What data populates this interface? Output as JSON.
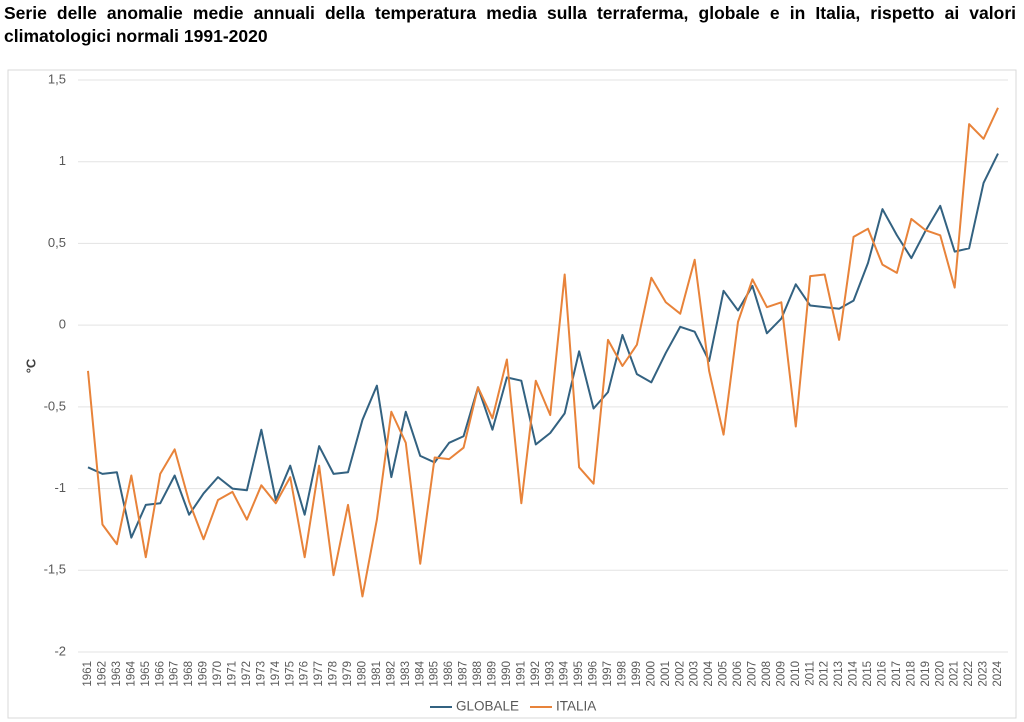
{
  "chart_data": {
    "type": "line",
    "title": "Serie delle anomalie medie annuali della temperatura media sulla terraferma, globale e in Italia, rispetto ai valori climatologici normali 1991-2020",
    "y_label": "°C",
    "categories": [
      "1961",
      "1962",
      "1963",
      "1964",
      "1965",
      "1966",
      "1967",
      "1968",
      "1969",
      "1970",
      "1971",
      "1972",
      "1973",
      "1974",
      "1975",
      "1976",
      "1977",
      "1978",
      "1979",
      "1980",
      "1981",
      "1982",
      "1983",
      "1984",
      "1985",
      "1986",
      "1987",
      "1988",
      "1989",
      "1990",
      "1991",
      "1992",
      "1993",
      "1994",
      "1995",
      "1996",
      "1997",
      "1998",
      "1999",
      "2000",
      "2001",
      "2002",
      "2003",
      "2004",
      "2005",
      "2006",
      "2007",
      "2008",
      "2009",
      "2010",
      "2011",
      "2012",
      "2013",
      "2014",
      "2015",
      "2016",
      "2017",
      "2018",
      "2019",
      "2020",
      "2021",
      "2022",
      "2023",
      "2024"
    ],
    "series": [
      {
        "name": "GLOBALE",
        "color": "#336281",
        "values": [
          -0.87,
          -0.91,
          -0.9,
          -1.3,
          -1.1,
          -1.09,
          -0.92,
          -1.16,
          -1.03,
          -0.93,
          -1.0,
          -1.01,
          -0.64,
          -1.07,
          -0.86,
          -1.16,
          -0.74,
          -0.91,
          -0.9,
          -0.58,
          -0.37,
          -0.93,
          -0.53,
          -0.8,
          -0.84,
          -0.72,
          -0.68,
          -0.38,
          -0.64,
          -0.32,
          -0.34,
          -0.73,
          -0.66,
          -0.54,
          -0.16,
          -0.51,
          -0.41,
          -0.06,
          -0.3,
          -0.35,
          -0.17,
          -0.01,
          -0.04,
          -0.22,
          0.21,
          0.09,
          0.24,
          -0.05,
          0.04,
          0.25,
          0.12,
          0.11,
          0.1,
          0.15,
          0.38,
          0.71,
          0.55,
          0.41,
          0.58,
          0.73,
          0.45,
          0.47,
          0.87,
          1.05
        ]
      },
      {
        "name": "ITALIA",
        "color": "#e8833a",
        "values": [
          -0.28,
          -1.22,
          -1.34,
          -0.92,
          -1.42,
          -0.91,
          -0.76,
          -1.08,
          -1.31,
          -1.07,
          -1.02,
          -1.19,
          -0.98,
          -1.09,
          -0.93,
          -1.42,
          -0.86,
          -1.53,
          -1.1,
          -1.66,
          -1.19,
          -0.53,
          -0.72,
          -1.46,
          -0.81,
          -0.82,
          -0.75,
          -0.38,
          -0.57,
          -0.21,
          -1.09,
          -0.34,
          -0.55,
          0.31,
          -0.87,
          -0.97,
          -0.09,
          -0.25,
          -0.12,
          0.29,
          0.14,
          0.07,
          0.4,
          -0.28,
          -0.67,
          0.02,
          0.28,
          0.11,
          0.14,
          -0.62,
          0.3,
          0.31,
          -0.09,
          0.54,
          0.59,
          0.37,
          0.32,
          0.65,
          0.58,
          0.55,
          0.23,
          1.23,
          1.14,
          1.33
        ]
      }
    ],
    "ylim": [
      -2,
      1.5
    ],
    "yticks": [
      -2,
      {
        "value": -1.5,
        "label": "-1,5"
      },
      -1,
      {
        "value": -0.5,
        "label": "-0,5"
      },
      0,
      {
        "value": 0.5,
        "label": "0,5"
      },
      1,
      {
        "value": 1.5,
        "label": "1,5"
      }
    ],
    "grid": true,
    "legend": "bottom"
  }
}
